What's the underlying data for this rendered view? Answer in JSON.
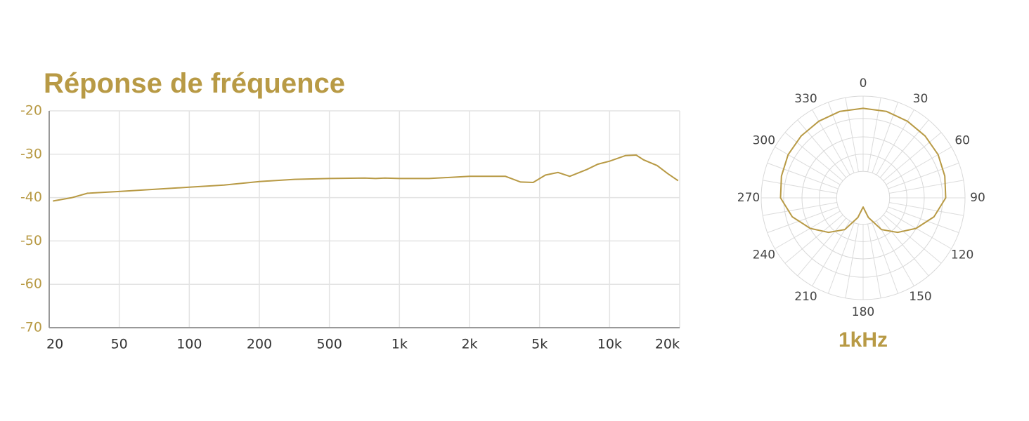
{
  "chart_data": [
    {
      "type": "line",
      "title": "Réponse de fréquence",
      "xscale": "log",
      "grid": true,
      "color": "#b89a45",
      "x": [
        21,
        27,
        33,
        50,
        100,
        141,
        200,
        316,
        500,
        710,
        790,
        865,
        1000,
        1340,
        2000,
        3200,
        3900,
        4600,
        5300,
        6000,
        6740,
        8000,
        8900,
        10000,
        11700,
        13000,
        14000,
        16000,
        17800,
        19700
      ],
      "values": [
        -40.8,
        -40.0,
        -39.0,
        -38.6,
        -37.6,
        -37.1,
        -36.3,
        -35.8,
        -35.6,
        -35.5,
        -35.6,
        -35.5,
        -35.6,
        -35.6,
        -35.1,
        -35.1,
        -36.4,
        -36.5,
        -34.8,
        -34.2,
        -35.1,
        -33.5,
        -32.3,
        -31.6,
        -30.3,
        -30.2,
        -31.3,
        -32.6,
        -34.5,
        -36.1
      ],
      "xlim": [
        20,
        20000
      ],
      "xticks": [
        20,
        50,
        100,
        200,
        500,
        {
          "value": 1000,
          "label": "1k"
        },
        {
          "value": 2000,
          "label": "2k"
        },
        {
          "value": 5000,
          "label": "5k"
        },
        {
          "value": 10000,
          "label": "10k"
        },
        {
          "value": 20000,
          "label": "20k"
        }
      ],
      "ylim": [
        -70,
        -20
      ],
      "yticks": [
        -20,
        -30,
        -40,
        -50,
        -60,
        -70
      ]
    },
    {
      "type": "polar",
      "title": "1kHz",
      "color": "#b89a45",
      "grid": true,
      "theta": [
        0,
        15,
        30,
        45,
        60,
        75,
        90,
        105,
        120,
        135,
        150,
        165,
        180,
        195,
        210,
        225,
        240,
        255,
        270,
        285,
        300,
        315,
        330,
        345
      ],
      "values": [
        0.88,
        0.88,
        0.87,
        0.86,
        0.85,
        0.83,
        0.81,
        0.72,
        0.6,
        0.48,
        0.36,
        0.2,
        0.09,
        0.2,
        0.36,
        0.48,
        0.6,
        0.72,
        0.81,
        0.83,
        0.85,
        0.86,
        0.87,
        0.88
      ],
      "rlim": [
        0,
        1
      ],
      "rticks": [
        0.26,
        0.43,
        0.6,
        0.78,
        1
      ],
      "thetaticks": [
        0,
        30,
        60,
        90,
        120,
        150,
        180,
        210,
        240,
        270,
        300,
        330
      ],
      "theta_grid_step": 10
    }
  ]
}
